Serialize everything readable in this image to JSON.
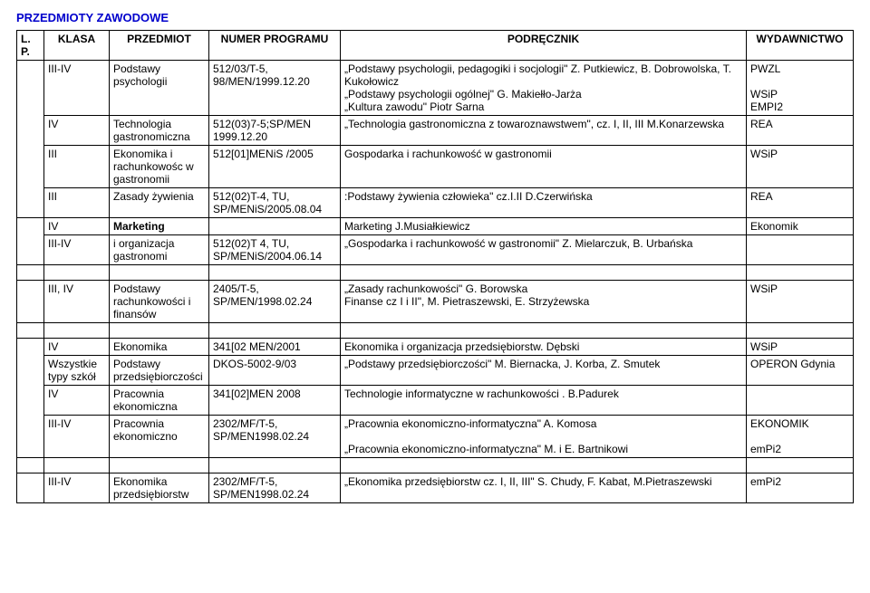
{
  "title": "PRZEDMIOTY ZAWODOWE",
  "headers": {
    "lp": "L.\nP.",
    "klasa": "KLASA",
    "przedmiot": "PRZEDMIOT",
    "numer": "NUMER PROGRAMU",
    "podrecznik": "PODRĘCZNIK",
    "wyd": "WYDAWNICTWO"
  },
  "r1": {
    "klasa": "III-IV",
    "przedmiot": "Podstawy psychologii",
    "numer": "512/03/T-5, 98/MEN/1999.12.20",
    "pod": "„Podstawy psychologii, pedagogiki i socjologii\" Z. Putkiewicz, B. Dobrowolska, T. Kukołowicz\n„Podstawy psychologii ogólnej\" G. Makiełło-Jarża\n„Kultura zawodu\" Piotr Sarna",
    "wyd": "PWZL\n\nWSiP\nEMPI2"
  },
  "r2": {
    "klasa": "IV",
    "przedmiot": "Technologia gastronomiczna",
    "numer": "512(03)7-5;SP/MEN 1999.12.20",
    "pod": "„Technologia gastronomiczna z towaroznawstwem\", cz. I, II, III  M.Konarzewska",
    "wyd": "REA"
  },
  "r3": {
    "klasa": "III",
    "przedmiot": "Ekonomika i rachunkowośc w gastronomii",
    "numer": "512[01]MENiS /2005",
    "pod": "Gospodarka i rachunkowość w gastronomii",
    "wyd": "WSiP"
  },
  "r4": {
    "klasa": "III",
    "przedmiot": "Zasady żywienia",
    "numer": "512(02)T-4, TU, SP/MENiS/2005.08.04",
    "pod": ":Podstawy żywienia człowieka\" cz.I.II D.Czerwińska",
    "wyd": "REA"
  },
  "r5": {
    "klasa": "IV",
    "przedmiot": "Marketing",
    "numer": "",
    "pod": "Marketing J.Musiałkiewicz",
    "wyd": "Ekonomik"
  },
  "r6": {
    "klasa": "III-IV",
    "przedmiot": "i organizacja gastronomi",
    "numer": "512(02)T 4, TU, SP/MENiS/2004.06.14",
    "pod": "„Gospodarka i rachunkowość w gastronomii\" Z. Mielarczuk, B. Urbańska",
    "wyd": ""
  },
  "r7": {
    "klasa": "III, IV",
    "przedmiot": "Podstawy rachunkowości i finansów",
    "numer": "2405/T-5, SP/MEN/1998.02.24",
    "pod": "„Zasady rachunkowości\" G. Borowska\nFinanse cz I i II\", M. Pietraszewski, E. Strzyżewska",
    "wyd": "WSiP"
  },
  "r8": {
    "klasa": "IV",
    "przedmiot": "Ekonomika",
    "numer": "341[02 MEN/2001",
    "pod": "Ekonomika i organizacja przedsiębiorstw.  Dębski",
    "wyd": "WSiP"
  },
  "r9": {
    "klasa": "Wszystkie typy szkół",
    "przedmiot": "Podstawy przedsiębiorczości",
    "numer": "DKOS-5002-9/03",
    "pod": "„Podstawy przedsiębiorczości\" M. Biernacka, J. Korba, Z. Smutek",
    "wyd": "OPERON Gdynia"
  },
  "r10": {
    "klasa": "IV",
    "przedmiot": "Pracownia ekonomiczna",
    "numer": "341[02]MEN 2008",
    "pod": "Technologie informatyczne w rachunkowości . B.Padurek",
    "wyd": ""
  },
  "r11": {
    "klasa": "III-IV",
    "przedmiot": "Pracownia ekonomiczno",
    "numer": "2302/MF/T-5, SP/MEN1998.02.24",
    "pod": "„Pracownia ekonomiczno-informatyczna\" A. Komosa\n\n„Pracownia ekonomiczno-informatyczna\" M. i E. Bartnikowi",
    "wyd": "EKONOMIK\n\nemPi2"
  },
  "r12": {
    "klasa": "III-IV",
    "przedmiot": "Ekonomika przedsiębiorstw",
    "numer": "2302/MF/T-5, SP/MEN1998.02.24",
    "pod": "„Ekonomika przedsiębiorstw cz. I, II, III\" S. Chudy, F. Kabat, M.Pietraszewski",
    "wyd": "emPi2"
  }
}
